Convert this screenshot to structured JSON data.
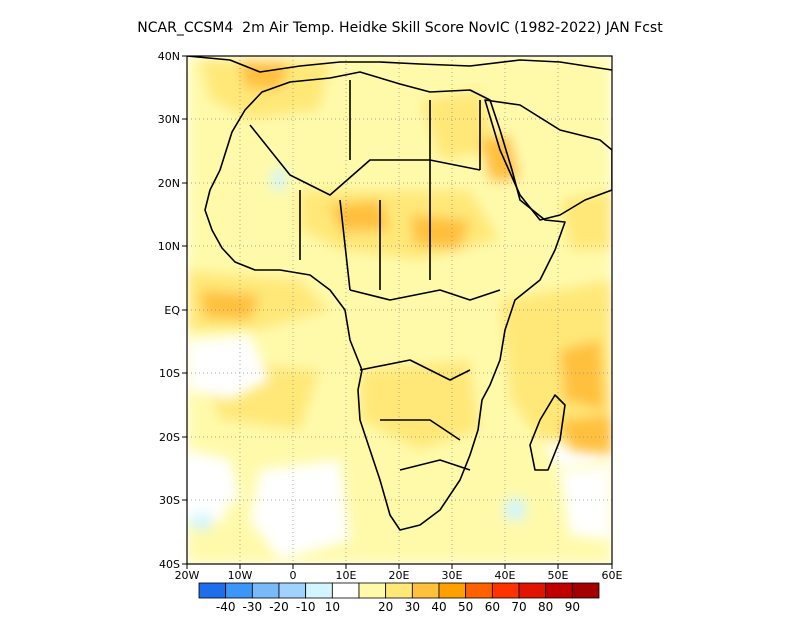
{
  "title": "NCAR_CCSM4  2m Air Temp. Heidke Skill Score NovIC (1982-2022) JAN Fcst",
  "lat_labels": [
    "40N",
    "30N",
    "20N",
    "10N",
    "EQ",
    "10S",
    "20S",
    "30S",
    "40S"
  ],
  "lon_labels": [
    "20W",
    "10W",
    "0",
    "10E",
    "20E",
    "30E",
    "40E",
    "50E",
    "60E"
  ],
  "colorbar": {
    "colors": [
      "#1e6eeb",
      "#3c96f5",
      "#78b9fa",
      "#a0d2ff",
      "#d2f5ff",
      "#ffffff",
      "#fffaaa",
      "#ffe878",
      "#ffc03c",
      "#ffa000",
      "#ff6000",
      "#ff3200",
      "#e11400",
      "#c00000",
      "#a50000"
    ],
    "labels": [
      "-40",
      "-30",
      "-20",
      "-10",
      "10",
      "20",
      "30",
      "40",
      "50",
      "60",
      "70",
      "80",
      "90"
    ]
  },
  "map": {
    "projection": "lat-lon",
    "lon_range": [
      -20,
      60
    ],
    "lat_range": [
      -40,
      40
    ],
    "grid": "dotted"
  }
}
